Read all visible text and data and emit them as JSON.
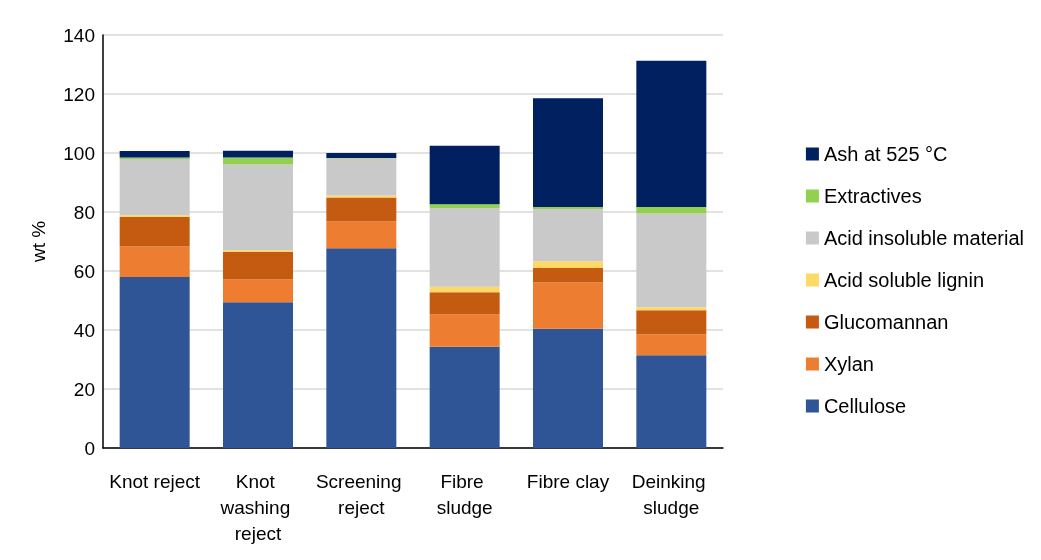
{
  "chart_data": {
    "type": "bar",
    "stacked": true,
    "ylabel": "wt %",
    "categories": [
      "Knot reject",
      "Knot washing reject",
      "Screening reject",
      "Fibre sludge",
      "Fibre clay",
      "Deinking sludge"
    ],
    "series": [
      {
        "name": "Cellulose",
        "color": "#2f5597",
        "values": [
          58,
          49.4,
          67.7,
          34.3,
          40.4,
          31.4
        ]
      },
      {
        "name": "Xylan",
        "color": "#ed7d31",
        "values": [
          10.3,
          7.8,
          9.1,
          11,
          15.7,
          7.2
        ]
      },
      {
        "name": "Glucomannan",
        "color": "#c55a11",
        "values": [
          10,
          9.2,
          8.1,
          7.5,
          4.9,
          8.1
        ]
      },
      {
        "name": "Acid soluble lignin",
        "color": "#ffd966",
        "values": [
          0.6,
          0.6,
          0.7,
          1.9,
          2.3,
          1
        ]
      },
      {
        "name": "Acid insoluble material",
        "color": "#c9c9c9",
        "values": [
          19.1,
          29.1,
          12.5,
          26.6,
          17.7,
          31.8
        ]
      },
      {
        "name": "Extractives",
        "color": "#92d050",
        "values": [
          0.5,
          2.4,
          0.2,
          1.3,
          0.7,
          2.2
        ]
      },
      {
        "name": "Ash at 525 °C",
        "color": "#002060",
        "values": [
          2.2,
          2.3,
          1.7,
          19.9,
          36.9,
          49.6
        ]
      }
    ],
    "ylim": [
      0,
      140
    ],
    "yticks": [
      0,
      20,
      40,
      60,
      80,
      100,
      120,
      140
    ],
    "grid": "y",
    "legend": "right"
  }
}
